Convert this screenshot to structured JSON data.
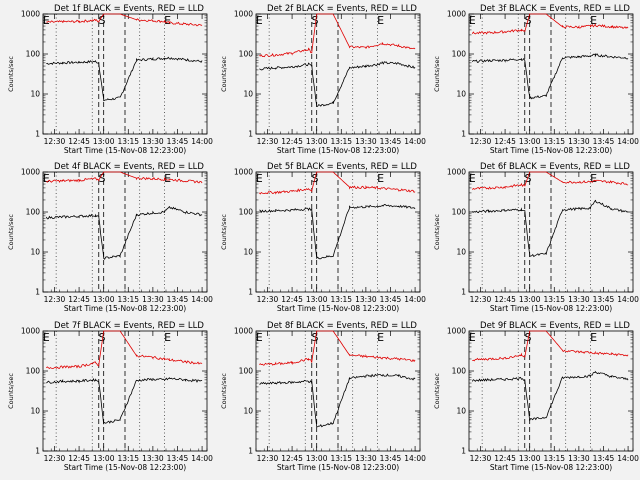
{
  "figure": {
    "background": "#f2f2f2",
    "events_color": "#000000",
    "lld_color": "#e00000"
  },
  "chart_data": [
    {
      "type": "line",
      "title": "Det 1f BLACK = Events, RED = LLD",
      "xlabel": "Start Time (15-Nov-08 12:23:00)",
      "ylabel": "Counts/sec",
      "xticks": [
        "12:30",
        "12:45",
        "13:00",
        "13:15",
        "13:30",
        "13:45",
        "14:00"
      ],
      "yticks": [
        "1",
        "10",
        "100",
        "1000"
      ],
      "yscale": "log",
      "ylim": [
        1,
        1000
      ],
      "markers": [
        "E",
        "S",
        "E"
      ],
      "grid": false,
      "x": [
        "12:25",
        "12:35",
        "12:45",
        "12:55",
        "12:57",
        "13:00",
        "13:10",
        "13:20",
        "13:30",
        "13:37",
        "13:40",
        "13:50",
        "14:00"
      ],
      "series": [
        {
          "name": "BLACK = Events",
          "values": [
            58,
            60,
            62,
            65,
            60,
            7,
            8,
            70,
            75,
            78,
            80,
            72,
            65
          ]
        },
        {
          "name": "RED = LLD",
          "values": [
            620,
            640,
            650,
            700,
            650,
            1000,
            1000,
            720,
            680,
            650,
            600,
            560,
            520
          ]
        }
      ]
    },
    {
      "type": "line",
      "title": "Det 2f BLACK = Events, RED = LLD",
      "xlabel": "Start Time (15-Nov-08 12:23:00)",
      "ylabel": "Counts/sec",
      "xticks": [
        "12:30",
        "12:45",
        "13:00",
        "13:15",
        "13:30",
        "13:45",
        "14:00"
      ],
      "yticks": [
        "1",
        "10",
        "100",
        "1000"
      ],
      "yscale": "log",
      "ylim": [
        1,
        1000
      ],
      "markers": [
        "E",
        "S",
        "E"
      ],
      "grid": false,
      "x": [
        "12:25",
        "12:35",
        "12:45",
        "12:55",
        "12:57",
        "13:00",
        "13:10",
        "13:20",
        "13:30",
        "13:37",
        "13:40",
        "13:50",
        "14:00"
      ],
      "series": [
        {
          "name": "BLACK = Events",
          "values": [
            42,
            45,
            48,
            55,
            50,
            5,
            6,
            45,
            50,
            55,
            60,
            58,
            45
          ]
        },
        {
          "name": "RED = LLD",
          "values": [
            90,
            95,
            105,
            130,
            110,
            1000,
            1000,
            150,
            145,
            170,
            185,
            160,
            130
          ]
        }
      ]
    },
    {
      "type": "line",
      "title": "Det 3f BLACK = Events, RED = LLD",
      "xlabel": "Start Time (15-Nov-08 12:23:00)",
      "ylabel": "Counts/sec",
      "xticks": [
        "12:30",
        "12:45",
        "13:00",
        "13:15",
        "13:30",
        "13:45",
        "14:00"
      ],
      "yticks": [
        "1",
        "10",
        "100",
        "1000"
      ],
      "yscale": "log",
      "ylim": [
        1,
        1000
      ],
      "markers": [
        "E",
        "S",
        "E"
      ],
      "grid": false,
      "x": [
        "12:25",
        "12:35",
        "12:45",
        "12:55",
        "12:57",
        "13:00",
        "13:10",
        "13:20",
        "13:30",
        "13:37",
        "13:40",
        "13:50",
        "14:00"
      ],
      "series": [
        {
          "name": "BLACK = Events",
          "values": [
            65,
            68,
            70,
            75,
            70,
            8,
            9,
            80,
            85,
            90,
            95,
            85,
            80
          ]
        },
        {
          "name": "RED = LLD",
          "values": [
            330,
            340,
            360,
            400,
            360,
            1000,
            1000,
            480,
            470,
            500,
            520,
            480,
            440
          ]
        }
      ]
    },
    {
      "type": "line",
      "title": "Det 4f BLACK = Events, RED = LLD",
      "xlabel": "Start Time (15-Nov-08 12:23:00)",
      "ylabel": "Counts/sec",
      "xticks": [
        "12:30",
        "12:45",
        "13:00",
        "13:15",
        "13:30",
        "13:45",
        "14:00"
      ],
      "yticks": [
        "1",
        "10",
        "100",
        "1000"
      ],
      "yscale": "log",
      "ylim": [
        1,
        1000
      ],
      "markers": [
        "E",
        "S",
        "E"
      ],
      "grid": false,
      "x": [
        "12:25",
        "12:35",
        "12:45",
        "12:55",
        "12:57",
        "13:00",
        "13:10",
        "13:20",
        "13:30",
        "13:37",
        "13:40",
        "13:50",
        "14:00"
      ],
      "series": [
        {
          "name": "BLACK = Events",
          "values": [
            72,
            75,
            78,
            82,
            75,
            7,
            8,
            85,
            95,
            100,
            130,
            100,
            85
          ]
        },
        {
          "name": "RED = LLD",
          "values": [
            580,
            600,
            620,
            680,
            630,
            1000,
            1000,
            700,
            680,
            660,
            650,
            600,
            560
          ]
        }
      ]
    },
    {
      "type": "line",
      "title": "Det 5f BLACK = Events, RED = LLD",
      "xlabel": "Start Time (15-Nov-08 12:23:00)",
      "ylabel": "Counts/sec",
      "xticks": [
        "12:30",
        "12:45",
        "13:00",
        "13:15",
        "13:30",
        "13:45",
        "14:00"
      ],
      "yticks": [
        "1",
        "10",
        "100",
        "1000"
      ],
      "yscale": "log",
      "ylim": [
        1,
        1000
      ],
      "markers": [
        "E",
        "S",
        "E"
      ],
      "grid": false,
      "x": [
        "12:25",
        "12:35",
        "12:45",
        "12:55",
        "12:57",
        "13:00",
        "13:10",
        "13:20",
        "13:30",
        "13:37",
        "13:40",
        "13:50",
        "14:00"
      ],
      "series": [
        {
          "name": "BLACK = Events",
          "values": [
            105,
            108,
            112,
            120,
            110,
            7,
            8,
            130,
            135,
            140,
            145,
            140,
            125
          ]
        },
        {
          "name": "RED = LLD",
          "values": [
            300,
            310,
            330,
            380,
            340,
            1000,
            1000,
            420,
            410,
            400,
            390,
            360,
            330
          ]
        }
      ]
    },
    {
      "type": "line",
      "title": "Det 6f BLACK = Events, RED = LLD",
      "xlabel": "Start Time (15-Nov-08 12:23:00)",
      "ylabel": "Counts/sec",
      "xticks": [
        "12:30",
        "12:45",
        "13:00",
        "13:15",
        "13:30",
        "13:45",
        "14:00"
      ],
      "yticks": [
        "1",
        "10",
        "100",
        "1000"
      ],
      "yscale": "log",
      "ylim": [
        1,
        1000
      ],
      "markers": [
        "E",
        "S",
        "E"
      ],
      "grid": false,
      "x": [
        "12:25",
        "12:35",
        "12:45",
        "12:55",
        "12:57",
        "13:00",
        "13:10",
        "13:20",
        "13:30",
        "13:37",
        "13:40",
        "13:50",
        "14:00"
      ],
      "series": [
        {
          "name": "BLACK = Events",
          "values": [
            100,
            105,
            110,
            115,
            105,
            8,
            9,
            115,
            120,
            125,
            190,
            120,
            100
          ]
        },
        {
          "name": "RED = LLD",
          "values": [
            380,
            400,
            420,
            480,
            440,
            1000,
            1000,
            560,
            560,
            570,
            600,
            560,
            500
          ]
        }
      ]
    },
    {
      "type": "line",
      "title": "Det 7f BLACK = Events, RED = LLD",
      "xlabel": "Start Time (15-Nov-08 12:23:00)",
      "ylabel": "Counts/sec",
      "xticks": [
        "12:30",
        "12:45",
        "13:00",
        "13:15",
        "13:30",
        "13:45",
        "14:00"
      ],
      "yticks": [
        "1",
        "10",
        "100",
        "1000"
      ],
      "yscale": "log",
      "ylim": [
        1,
        1000
      ],
      "markers": [
        "E",
        "S",
        "E"
      ],
      "grid": false,
      "x": [
        "12:25",
        "12:35",
        "12:45",
        "12:55",
        "12:57",
        "13:00",
        "13:10",
        "13:20",
        "13:30",
        "13:37",
        "13:40",
        "13:50",
        "14:00"
      ],
      "series": [
        {
          "name": "BLACK = Events",
          "values": [
            52,
            55,
            56,
            60,
            55,
            5,
            6,
            58,
            62,
            60,
            65,
            60,
            55
          ]
        },
        {
          "name": "RED = LLD",
          "values": [
            120,
            125,
            130,
            160,
            140,
            1000,
            1000,
            240,
            220,
            200,
            190,
            170,
            150
          ]
        }
      ]
    },
    {
      "type": "line",
      "title": "Det 8f BLACK = Events, RED = LLD",
      "xlabel": "Start Time (15-Nov-08 12:23:00)",
      "ylabel": "Counts/sec",
      "xticks": [
        "12:30",
        "12:45",
        "13:00",
        "13:15",
        "13:30",
        "13:45",
        "14:00"
      ],
      "yticks": [
        "1",
        "10",
        "100",
        "1000"
      ],
      "yscale": "log",
      "ylim": [
        1,
        1000
      ],
      "markers": [
        "E",
        "S",
        "E"
      ],
      "grid": false,
      "x": [
        "12:25",
        "12:35",
        "12:45",
        "12:55",
        "12:57",
        "13:00",
        "13:10",
        "13:20",
        "13:30",
        "13:37",
        "13:40",
        "13:50",
        "14:00"
      ],
      "series": [
        {
          "name": "BLACK = Events",
          "values": [
            48,
            50,
            52,
            56,
            52,
            4,
            5,
            65,
            75,
            78,
            80,
            75,
            62
          ]
        },
        {
          "name": "RED = LLD",
          "values": [
            145,
            150,
            160,
            200,
            170,
            1000,
            1000,
            250,
            230,
            220,
            215,
            200,
            180
          ]
        }
      ]
    },
    {
      "type": "line",
      "title": "Det 9f BLACK = Events, RED = LLD",
      "xlabel": "Start Time (15-Nov-08 12:23:00)",
      "ylabel": "Counts/sec",
      "xticks": [
        "12:30",
        "12:45",
        "13:00",
        "13:15",
        "13:30",
        "13:45",
        "14:00"
      ],
      "yticks": [
        "1",
        "10",
        "100",
        "1000"
      ],
      "yscale": "log",
      "ylim": [
        1,
        1000
      ],
      "markers": [
        "E",
        "S",
        "E"
      ],
      "grid": false,
      "x": [
        "12:25",
        "12:35",
        "12:45",
        "12:55",
        "12:57",
        "13:00",
        "13:10",
        "13:20",
        "13:30",
        "13:37",
        "13:40",
        "13:50",
        "14:00"
      ],
      "series": [
        {
          "name": "BLACK = Events",
          "values": [
            58,
            60,
            62,
            66,
            60,
            6,
            7,
            68,
            72,
            75,
            95,
            72,
            62
          ]
        },
        {
          "name": "RED = LLD",
          "values": [
            190,
            200,
            210,
            250,
            220,
            1000,
            1000,
            330,
            300,
            290,
            280,
            265,
            245
          ]
        }
      ]
    }
  ]
}
